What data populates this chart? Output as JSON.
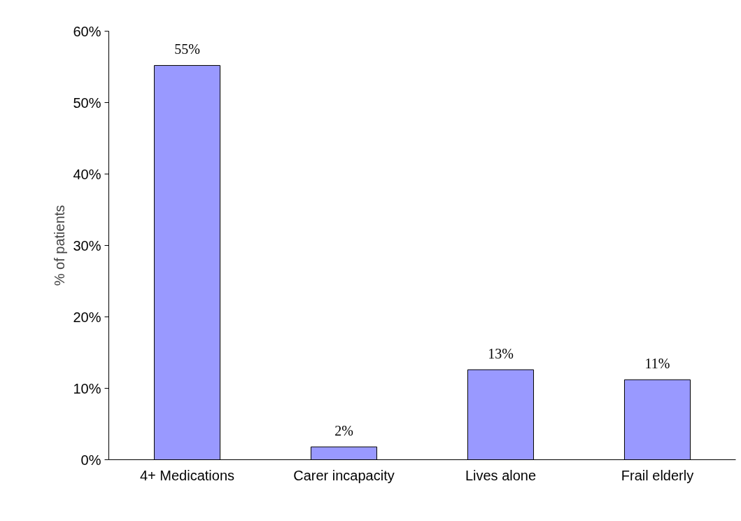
{
  "chart_data": {
    "type": "bar",
    "ylabel": "% of patients",
    "categories": [
      "4+ Medications",
      "Carer incapacity",
      "Lives alone",
      "Frail elderly"
    ],
    "values": [
      55.2,
      1.8,
      12.6,
      11.2
    ],
    "value_labels": [
      "55%",
      "2%",
      "13%",
      "11%"
    ],
    "color": "#9999ff",
    "ylim": [
      0,
      60
    ],
    "yticks": [
      {
        "value": 0,
        "label": "0%"
      },
      {
        "value": 10,
        "label": "10%"
      },
      {
        "value": 20,
        "label": "20%"
      },
      {
        "value": 30,
        "label": "30%"
      },
      {
        "value": 40,
        "label": "40%"
      },
      {
        "value": 50,
        "label": "50%"
      },
      {
        "value": 60,
        "label": "60%"
      }
    ],
    "grid": false
  }
}
